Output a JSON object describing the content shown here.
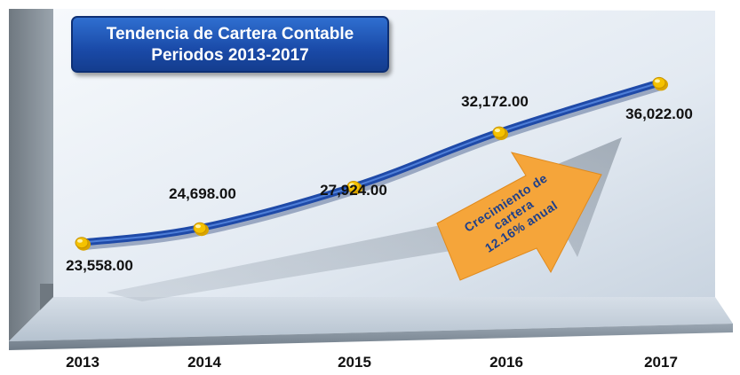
{
  "chart_data": {
    "type": "line",
    "title": "Tendencia de Cartera Contable",
    "subtitle": "Periodos 2013-2017",
    "categories": [
      "2013",
      "2014",
      "2015",
      "2016",
      "2017"
    ],
    "values": [
      23558.0,
      24698.0,
      27924.0,
      32172.0,
      36022.0
    ],
    "data_labels": [
      "23,558.00",
      "24,698.00",
      "27,924.00",
      "32,172.00",
      "36,022.00"
    ],
    "ylim": [
      22500,
      37500
    ],
    "grid": false,
    "annotation": {
      "lines": [
        "Crecimiento de",
        "cartera",
        "12.16% anual"
      ]
    },
    "colors": {
      "line": "#1f4aa8",
      "marker": "#f5c200",
      "arrow": "#f5a53a",
      "title_box": "#1a4aa8"
    }
  }
}
